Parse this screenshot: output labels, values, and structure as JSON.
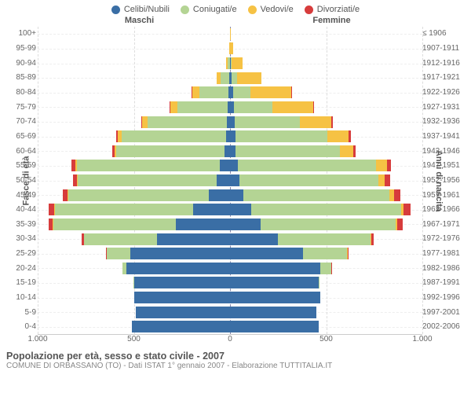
{
  "legend": [
    {
      "label": "Celibi/Nubili",
      "color": "#3a6ea5"
    },
    {
      "label": "Coniugati/e",
      "color": "#b4d494"
    },
    {
      "label": "Vedovi/e",
      "color": "#f6c244"
    },
    {
      "label": "Divorziati/e",
      "color": "#d73c3c"
    }
  ],
  "col_headers": {
    "left": "Maschi",
    "right": "Femmine"
  },
  "y_left_title": "Fasce di età",
  "y_right_title": "Anni di nascita",
  "x_axis": {
    "ticks": [
      {
        "pos": 0.0,
        "label": "1.000"
      },
      {
        "pos": 0.25,
        "label": "500"
      },
      {
        "pos": 0.5,
        "label": "0"
      },
      {
        "pos": 0.75,
        "label": "500"
      },
      {
        "pos": 1.0,
        "label": "1.000"
      }
    ],
    "max": 1000
  },
  "footer": {
    "title": "Popolazione per età, sesso e stato civile - 2007",
    "sub": "COMUNE DI ORBASSANO (TO) - Dati ISTAT 1° gennaio 2007 - Elaborazione TUTTITALIA.IT"
  },
  "series_keys": [
    "celibi",
    "coniugati",
    "vedovi",
    "divorziati"
  ],
  "rows": [
    {
      "age": "100+",
      "birth": "≤ 1906",
      "m": {
        "celibi": 0,
        "coniugati": 0,
        "vedovi": 1,
        "divorziati": 0
      },
      "f": {
        "celibi": 0,
        "coniugati": 0,
        "vedovi": 3,
        "divorziati": 0
      }
    },
    {
      "age": "95-99",
      "birth": "1907-1911",
      "m": {
        "celibi": 0,
        "coniugati": 2,
        "vedovi": 3,
        "divorziati": 0
      },
      "f": {
        "celibi": 2,
        "coniugati": 0,
        "vedovi": 15,
        "divorziati": 0
      }
    },
    {
      "age": "90-94",
      "birth": "1912-1916",
      "m": {
        "celibi": 2,
        "coniugati": 10,
        "vedovi": 10,
        "divorziati": 0
      },
      "f": {
        "celibi": 4,
        "coniugati": 5,
        "vedovi": 55,
        "divorziati": 0
      }
    },
    {
      "age": "85-89",
      "birth": "1917-1921",
      "m": {
        "celibi": 4,
        "coniugati": 45,
        "vedovi": 22,
        "divorziati": 0
      },
      "f": {
        "celibi": 10,
        "coniugati": 25,
        "vedovi": 130,
        "divorziati": 0
      }
    },
    {
      "age": "80-84",
      "birth": "1922-1926",
      "m": {
        "celibi": 8,
        "coniugati": 150,
        "vedovi": 40,
        "divorziati": 2
      },
      "f": {
        "celibi": 18,
        "coniugati": 90,
        "vedovi": 210,
        "divorziati": 3
      }
    },
    {
      "age": "75-79",
      "birth": "1927-1931",
      "m": {
        "celibi": 12,
        "coniugati": 260,
        "vedovi": 40,
        "divorziati": 3
      },
      "f": {
        "celibi": 22,
        "coniugati": 200,
        "vedovi": 210,
        "divorziati": 5
      }
    },
    {
      "age": "70-74",
      "birth": "1932-1936",
      "m": {
        "celibi": 18,
        "coniugati": 410,
        "vedovi": 30,
        "divorziati": 5
      },
      "f": {
        "celibi": 25,
        "coniugati": 340,
        "vedovi": 160,
        "divorziati": 8
      }
    },
    {
      "age": "65-69",
      "birth": "1937-1941",
      "m": {
        "celibi": 22,
        "coniugati": 540,
        "vedovi": 20,
        "divorziati": 10
      },
      "f": {
        "celibi": 28,
        "coniugati": 480,
        "vedovi": 110,
        "divorziati": 12
      }
    },
    {
      "age": "60-64",
      "birth": "1942-1946",
      "m": {
        "celibi": 30,
        "coniugati": 560,
        "vedovi": 12,
        "divorziati": 12
      },
      "f": {
        "celibi": 30,
        "coniugati": 540,
        "vedovi": 70,
        "divorziati": 15
      }
    },
    {
      "age": "55-59",
      "birth": "1947-1951",
      "m": {
        "celibi": 55,
        "coniugati": 740,
        "vedovi": 10,
        "divorziati": 18
      },
      "f": {
        "celibi": 40,
        "coniugati": 720,
        "vedovi": 55,
        "divorziati": 22
      }
    },
    {
      "age": "50-54",
      "birth": "1952-1956",
      "m": {
        "celibi": 70,
        "coniugati": 720,
        "vedovi": 6,
        "divorziati": 22
      },
      "f": {
        "celibi": 50,
        "coniugati": 720,
        "vedovi": 35,
        "divorziati": 28
      }
    },
    {
      "age": "45-49",
      "birth": "1957-1961",
      "m": {
        "celibi": 110,
        "coniugati": 730,
        "vedovi": 4,
        "divorziati": 26
      },
      "f": {
        "celibi": 70,
        "coniugati": 760,
        "vedovi": 22,
        "divorziati": 32
      }
    },
    {
      "age": "40-44",
      "birth": "1962-1966",
      "m": {
        "celibi": 190,
        "coniugati": 720,
        "vedovi": 3,
        "divorziati": 28
      },
      "f": {
        "celibi": 110,
        "coniugati": 780,
        "vedovi": 14,
        "divorziati": 36
      }
    },
    {
      "age": "35-39",
      "birth": "1967-1971",
      "m": {
        "celibi": 280,
        "coniugati": 640,
        "vedovi": 2,
        "divorziati": 22
      },
      "f": {
        "celibi": 160,
        "coniugati": 700,
        "vedovi": 8,
        "divorziati": 28
      }
    },
    {
      "age": "30-34",
      "birth": "1972-1976",
      "m": {
        "celibi": 380,
        "coniugati": 380,
        "vedovi": 0,
        "divorziati": 10
      },
      "f": {
        "celibi": 250,
        "coniugati": 480,
        "vedovi": 3,
        "divorziati": 14
      }
    },
    {
      "age": "25-29",
      "birth": "1977-1981",
      "m": {
        "celibi": 520,
        "coniugati": 120,
        "vedovi": 0,
        "divorziati": 3
      },
      "f": {
        "celibi": 380,
        "coniugati": 230,
        "vedovi": 1,
        "divorziati": 5
      }
    },
    {
      "age": "20-24",
      "birth": "1982-1986",
      "m": {
        "celibi": 540,
        "coniugati": 18,
        "vedovi": 0,
        "divorziati": 0
      },
      "f": {
        "celibi": 470,
        "coniugati": 55,
        "vedovi": 0,
        "divorziati": 1
      }
    },
    {
      "age": "15-19",
      "birth": "1987-1991",
      "m": {
        "celibi": 500,
        "coniugati": 2,
        "vedovi": 0,
        "divorziati": 0
      },
      "f": {
        "celibi": 460,
        "coniugati": 6,
        "vedovi": 0,
        "divorziati": 0
      }
    },
    {
      "age": "10-14",
      "birth": "1992-1996",
      "m": {
        "celibi": 500,
        "coniugati": 0,
        "vedovi": 0,
        "divorziati": 0
      },
      "f": {
        "celibi": 470,
        "coniugati": 0,
        "vedovi": 0,
        "divorziati": 0
      }
    },
    {
      "age": "5-9",
      "birth": "1997-2001",
      "m": {
        "celibi": 490,
        "coniugati": 0,
        "vedovi": 0,
        "divorziati": 0
      },
      "f": {
        "celibi": 450,
        "coniugati": 0,
        "vedovi": 0,
        "divorziati": 0
      }
    },
    {
      "age": "0-4",
      "birth": "2002-2006",
      "m": {
        "celibi": 510,
        "coniugati": 0,
        "vedovi": 0,
        "divorziati": 0
      },
      "f": {
        "celibi": 460,
        "coniugati": 0,
        "vedovi": 0,
        "divorziati": 0
      }
    }
  ]
}
